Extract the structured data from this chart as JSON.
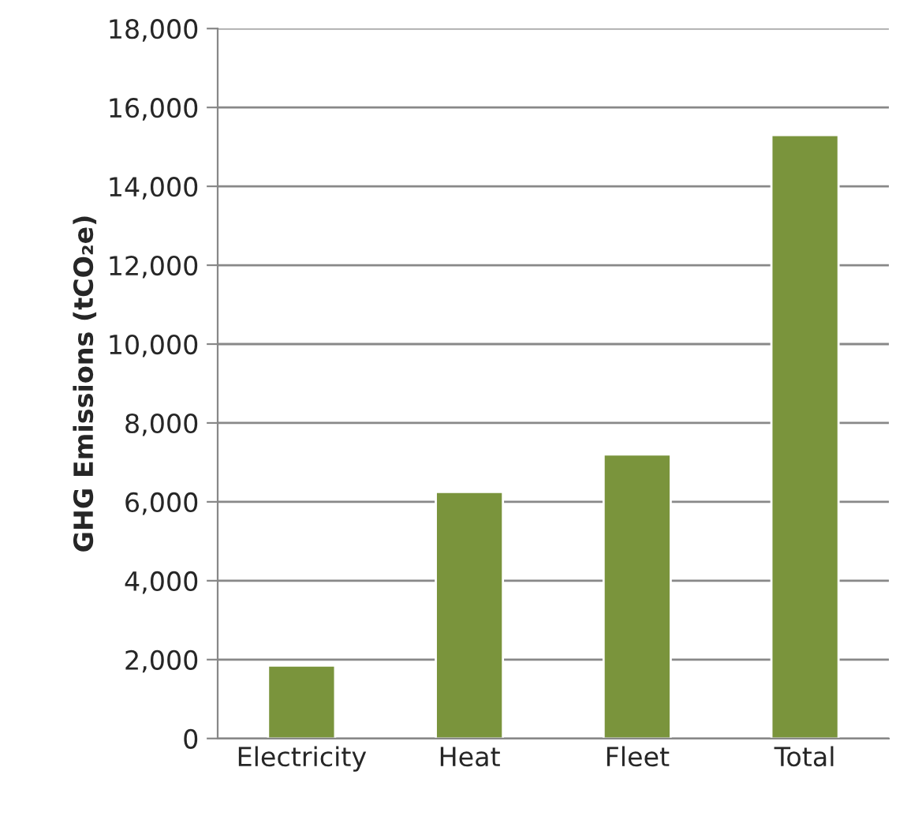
{
  "chart_data": {
    "type": "bar",
    "ylabel": "GHG Emissions (tCO₂e)",
    "categories": [
      "Electricity",
      "Heat",
      "Fleet",
      "Total"
    ],
    "values": [
      1850,
      6250,
      7200,
      15300
    ],
    "color": "#7a943c",
    "ylim": [
      0,
      18000
    ],
    "yticks": [
      {
        "value": 0,
        "label": "0"
      },
      {
        "value": 2000,
        "label": "2,000"
      },
      {
        "value": 4000,
        "label": "4,000"
      },
      {
        "value": 6000,
        "label": "6,000"
      },
      {
        "value": 8000,
        "label": "8,000"
      },
      {
        "value": 10000,
        "label": "10,000"
      },
      {
        "value": 12000,
        "label": "12,000"
      },
      {
        "value": 14000,
        "label": "14,000"
      },
      {
        "value": 16000,
        "label": "16,000"
      },
      {
        "value": 18000,
        "label": "18,000"
      }
    ],
    "grid": "y"
  }
}
